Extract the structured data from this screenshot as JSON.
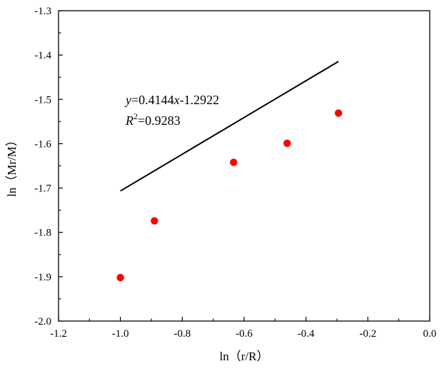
{
  "chart_data": {
    "type": "scatter",
    "title": "",
    "xlabel": "ln（r/R）",
    "ylabel": "ln（Mr/M）",
    "xlim": [
      -1.2,
      0.0
    ],
    "ylim": [
      -2.0,
      -1.3
    ],
    "x_ticks": [
      "-1.2",
      "-1.0",
      "-0.8",
      "-0.6",
      "-0.4",
      "-0.2",
      "0.0"
    ],
    "y_ticks": [
      "-1.3",
      "-1.4",
      "-1.5",
      "-1.6",
      "-1.7",
      "-1.8",
      "-1.9",
      "-2.0"
    ],
    "grid": false,
    "legend": "none",
    "series": [
      {
        "points": [
          {
            "x": -1.0,
            "y": -1.902
          },
          {
            "x": -0.89,
            "y": -1.774
          },
          {
            "x": -0.634,
            "y": -1.642
          },
          {
            "x": -0.461,
            "y": -1.599
          },
          {
            "x": -0.295,
            "y": -1.531
          }
        ],
        "color": "#ff0000"
      }
    ],
    "fit_line": {
      "slope": 0.4144,
      "intercept": -1.2922,
      "x_range": [
        -1.0,
        -0.295
      ],
      "color": "#000000"
    },
    "annotation": {
      "equation_y": "y",
      "equation_mid": "=0.4144",
      "equation_x": "x",
      "equation_rest": "-1.2922",
      "r2_base": "R",
      "r2_exp": "2",
      "r2_value": "=0.9283"
    }
  }
}
